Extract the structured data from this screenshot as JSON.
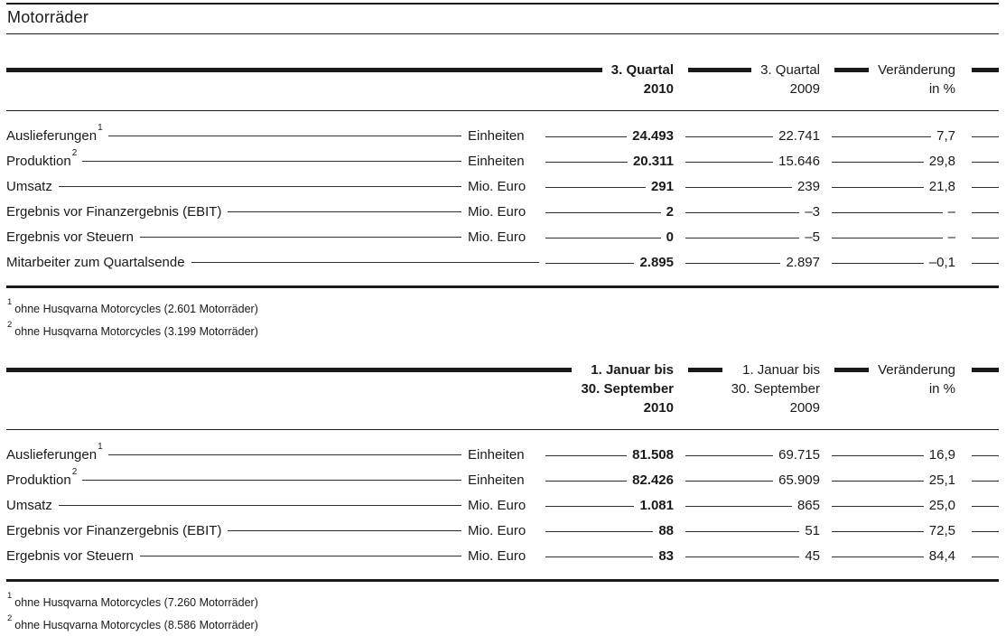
{
  "title": "Motorräder",
  "tables": [
    {
      "name": "quarter",
      "header": {
        "current": [
          "3. Quartal",
          "2010"
        ],
        "prior": [
          "3. Quartal",
          "2009"
        ],
        "change": [
          "Veränderung",
          "in %"
        ]
      },
      "rows": [
        {
          "label": "Auslieferungen",
          "sup": "1",
          "unit": "Einheiten",
          "current": "24.493",
          "prior": "22.741",
          "change": "7,7"
        },
        {
          "label": "Produktion",
          "sup": "2",
          "unit": "Einheiten",
          "current": "20.311",
          "prior": "15.646",
          "change": "29,8"
        },
        {
          "label": "Umsatz",
          "sup": null,
          "unit": "Mio. Euro",
          "current": "291",
          "prior": "239",
          "change": "21,8"
        },
        {
          "label": "Ergebnis vor Finanzergebnis (EBIT)",
          "sup": null,
          "unit": "Mio. Euro",
          "current": "2",
          "prior": "–3",
          "change": "–"
        },
        {
          "label": "Ergebnis vor Steuern",
          "sup": null,
          "unit": "Mio. Euro",
          "current": "0",
          "prior": "–5",
          "change": "–"
        },
        {
          "label": "Mitarbeiter zum Quartalsende",
          "sup": null,
          "unit": null,
          "current": "2.895",
          "prior": "2.897",
          "change": "–0,1"
        }
      ],
      "footnotes": [
        {
          "sup": "1",
          "text": "ohne Husqvarna Motorcycles (2.601 Motorräder)"
        },
        {
          "sup": "2",
          "text": "ohne Husqvarna Motorcycles (3.199 Motorräder)"
        }
      ]
    },
    {
      "name": "ytd",
      "header": {
        "current": [
          "1. Januar bis",
          "30. September",
          "2010"
        ],
        "prior": [
          "1. Januar bis",
          "30. September",
          "2009"
        ],
        "change": [
          "Veränderung",
          "in %"
        ]
      },
      "rows": [
        {
          "label": "Auslieferungen",
          "sup": "1",
          "unit": "Einheiten",
          "current": "81.508",
          "prior": "69.715",
          "change": "16,9"
        },
        {
          "label": "Produktion",
          "sup": "2",
          "unit": "Einheiten",
          "current": "82.426",
          "prior": "65.909",
          "change": "25,1"
        },
        {
          "label": "Umsatz",
          "sup": null,
          "unit": "Mio. Euro",
          "current": "1.081",
          "prior": "865",
          "change": "25,0"
        },
        {
          "label": "Ergebnis vor Finanzergebnis (EBIT)",
          "sup": null,
          "unit": "Mio. Euro",
          "current": "88",
          "prior": "51",
          "change": "72,5"
        },
        {
          "label": "Ergebnis vor Steuern",
          "sup": null,
          "unit": "Mio. Euro",
          "current": "83",
          "prior": "45",
          "change": "84,4"
        }
      ],
      "footnotes": [
        {
          "sup": "1",
          "text": "ohne Husqvarna Motorcycles (7.260 Motorräder)"
        },
        {
          "sup": "2",
          "text": "ohne Husqvarna Motorcycles (8.586 Motorräder)"
        }
      ]
    }
  ],
  "ink_color": "#1a1a1a"
}
